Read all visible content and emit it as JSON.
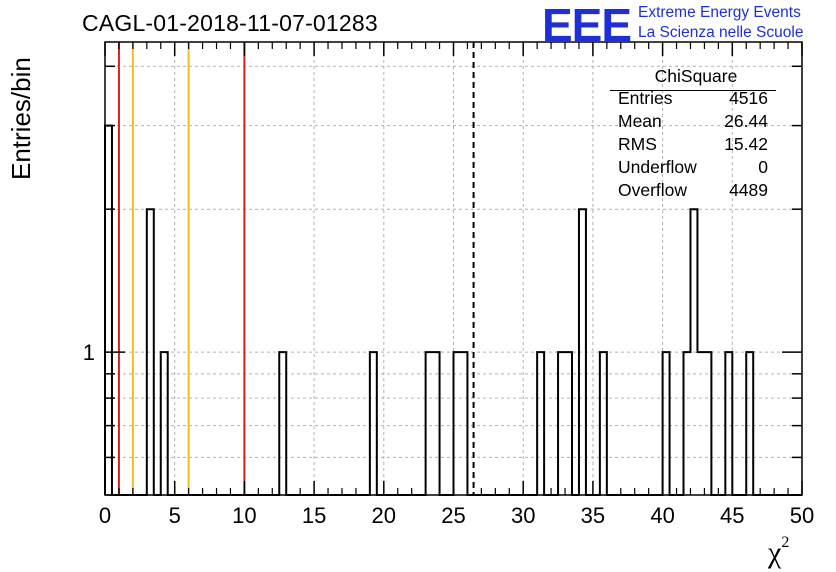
{
  "chart_data": {
    "type": "bar",
    "title": "CAGL-01-2018-11-07-01283",
    "xlabel": "χ",
    "xlabel_exponent": "2",
    "ylabel": "Entries/bin",
    "xlim": [
      0,
      50
    ],
    "ylim": [
      0.5,
      4.5
    ],
    "y_scale": "log",
    "grid": true,
    "bin_width": 0.5,
    "x_ticks": [
      0,
      5,
      10,
      15,
      20,
      25,
      30,
      35,
      40,
      45,
      50
    ],
    "y_tick_labels": [
      {
        "value": 1,
        "label": "1"
      }
    ],
    "bins": [
      {
        "x": 0.0,
        "count": 3
      },
      {
        "x": 3.0,
        "count": 2
      },
      {
        "x": 4.0,
        "count": 1
      },
      {
        "x": 12.5,
        "count": 1
      },
      {
        "x": 19.0,
        "count": 1
      },
      {
        "x": 23.0,
        "count": 1
      },
      {
        "x": 23.5,
        "count": 1
      },
      {
        "x": 25.0,
        "count": 1
      },
      {
        "x": 25.5,
        "count": 1
      },
      {
        "x": 31.0,
        "count": 1
      },
      {
        "x": 32.5,
        "count": 1
      },
      {
        "x": 33.0,
        "count": 1
      },
      {
        "x": 34.0,
        "count": 2
      },
      {
        "x": 35.5,
        "count": 1
      },
      {
        "x": 40.0,
        "count": 1
      },
      {
        "x": 41.5,
        "count": 1
      },
      {
        "x": 42.0,
        "count": 2
      },
      {
        "x": 42.5,
        "count": 1
      },
      {
        "x": 43.0,
        "count": 1
      },
      {
        "x": 44.5,
        "count": 1
      },
      {
        "x": 46.0,
        "count": 1
      }
    ],
    "reference_lines": [
      {
        "x": 1.0,
        "color": "#d42020",
        "style": "solid"
      },
      {
        "x": 2.0,
        "color": "#f0be20",
        "style": "solid"
      },
      {
        "x": 6.0,
        "color": "#f0be20",
        "style": "solid"
      },
      {
        "x": 10.0,
        "color": "#d42020",
        "style": "solid"
      },
      {
        "x": 26.44,
        "color": "#000000",
        "style": "dashed"
      }
    ],
    "stats_box": {
      "title": "ChiSquare",
      "rows": [
        {
          "label": "Entries",
          "value": "4516"
        },
        {
          "label": "Mean",
          "value": "26.44"
        },
        {
          "label": "RMS",
          "value": "15.42"
        },
        {
          "label": "Underflow",
          "value": "0"
        },
        {
          "label": "Overflow",
          "value": "4489"
        }
      ]
    }
  },
  "logo": {
    "mark": "EEE",
    "line1": "Extreme Energy Events",
    "line2": "La Scienza nelle Scuole",
    "color": "#1f2fd8"
  }
}
